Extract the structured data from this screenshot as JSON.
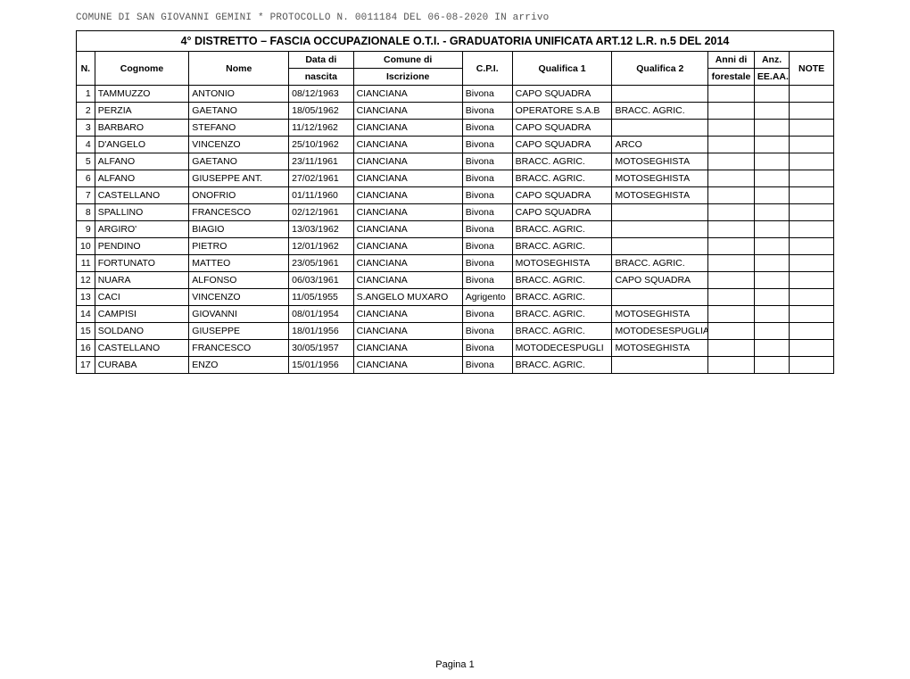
{
  "header_text": "COMUNE DI SAN GIOVANNI GEMINI  * PROTOCOLLO N. 0011184 DEL 06-08-2020 IN arrivo",
  "title": "4° DISTRETTO – FASCIA OCCUPAZIONALE O.T.I. - GRADUATORIA UNIFICATA ART.12 L.R. n.5 DEL 2014",
  "columns": {
    "n": "N.",
    "cognome": "Cognome",
    "nome": "Nome",
    "data_top": "Data di",
    "data_bot": "nascita",
    "comune_top": "Comune di",
    "comune_bot": "Iscrizione",
    "cpi": "C.P.I.",
    "q1": "Qualifica 1",
    "q2": "Qualifica 2",
    "anni_top": "Anni di",
    "anni_bot": "forestale",
    "anz_top": "Anz.",
    "anz_bot": "EE.AA.",
    "note": "NOTE"
  },
  "col_widths": {
    "n": 20,
    "cognome": 102,
    "nome": 108,
    "data": 70,
    "comune": 118,
    "cpi": 54,
    "q1": 108,
    "q2": 104,
    "anni": 50,
    "anz": 38,
    "note": 48
  },
  "rows": [
    {
      "n": "1",
      "cognome": "TAMMUZZO",
      "nome": "ANTONIO",
      "data": "08/12/1963",
      "comune": "CIANCIANA",
      "cpi": "Bivona",
      "q1": "CAPO SQUADRA",
      "q2": ""
    },
    {
      "n": "2",
      "cognome": "PERZIA",
      "nome": "GAETANO",
      "data": "18/05/1962",
      "comune": "CIANCIANA",
      "cpi": "Bivona",
      "q1": "OPERATORE S.A.B",
      "q2": "BRACC. AGRIC."
    },
    {
      "n": "3",
      "cognome": "BARBARO",
      "nome": "STEFANO",
      "data": "11/12/1962",
      "comune": "CIANCIANA",
      "cpi": "Bivona",
      "q1": "CAPO SQUADRA",
      "q2": ""
    },
    {
      "n": "4",
      "cognome": "D'ANGELO",
      "nome": "VINCENZO",
      "data": "25/10/1962",
      "comune": "CIANCIANA",
      "cpi": "Bivona",
      "q1": "CAPO SQUADRA",
      "q2": "ARCO"
    },
    {
      "n": "5",
      "cognome": "ALFANO",
      "nome": "GAETANO",
      "data": "23/11/1961",
      "comune": "CIANCIANA",
      "cpi": "Bivona",
      "q1": "BRACC. AGRIC.",
      "q2": "MOTOSEGHISTA"
    },
    {
      "n": "6",
      "cognome": "ALFANO",
      "nome": "GIUSEPPE ANT.",
      "data": "27/02/1961",
      "comune": "CIANCIANA",
      "cpi": "Bivona",
      "q1": "BRACC. AGRIC.",
      "q2": "MOTOSEGHISTA"
    },
    {
      "n": "7",
      "cognome": "CASTELLANO",
      "nome": "ONOFRIO",
      "data": "01/11/1960",
      "comune": "CIANCIANA",
      "cpi": "Bivona",
      "q1": "CAPO SQUADRA",
      "q2": "MOTOSEGHISTA"
    },
    {
      "n": "8",
      "cognome": "SPALLINO",
      "nome": "FRANCESCO",
      "data": "02/12/1961",
      "comune": "CIANCIANA",
      "cpi": "Bivona",
      "q1": "CAPO SQUADRA",
      "q2": ""
    },
    {
      "n": "9",
      "cognome": "ARGIRO'",
      "nome": "BIAGIO",
      "data": "13/03/1962",
      "comune": "CIANCIANA",
      "cpi": "Bivona",
      "q1": "BRACC. AGRIC.",
      "q2": ""
    },
    {
      "n": "10",
      "cognome": "PENDINO",
      "nome": "PIETRO",
      "data": "12/01/1962",
      "comune": "CIANCIANA",
      "cpi": "Bivona",
      "q1": "BRACC. AGRIC.",
      "q2": ""
    },
    {
      "n": "11",
      "cognome": "FORTUNATO",
      "nome": "MATTEO",
      "data": "23/05/1961",
      "comune": "CIANCIANA",
      "cpi": "Bivona",
      "q1": "MOTOSEGHISTA",
      "q2": "BRACC. AGRIC."
    },
    {
      "n": "12",
      "cognome": "NUARA",
      "nome": "ALFONSO",
      "data": "06/03/1961",
      "comune": "CIANCIANA",
      "cpi": "Bivona",
      "q1": "BRACC. AGRIC.",
      "q2": "CAPO SQUADRA"
    },
    {
      "n": "13",
      "cognome": "CACI",
      "nome": "VINCENZO",
      "data": "11/05/1955",
      "comune": "S.ANGELO MUXARO",
      "cpi": "Agrigento",
      "q1": "BRACC. AGRIC.",
      "q2": ""
    },
    {
      "n": "14",
      "cognome": "CAMPISI",
      "nome": "GIOVANNI",
      "data": "08/01/1954",
      "comune": "CIANCIANA",
      "cpi": "Bivona",
      "q1": "BRACC. AGRIC.",
      "q2": "MOTOSEGHISTA"
    },
    {
      "n": "15",
      "cognome": "SOLDANO",
      "nome": "GIUSEPPE",
      "data": "18/01/1956",
      "comune": "CIANCIANA",
      "cpi": "Bivona",
      "q1": "BRACC. AGRIC.",
      "q2": "MOTODESESPUGLIATORE"
    },
    {
      "n": "16",
      "cognome": "CASTELLANO",
      "nome": "FRANCESCO",
      "data": "30/05/1957",
      "comune": "CIANCIANA",
      "cpi": "Bivona",
      "q1": "MOTODECESPUGLI",
      "q2": "MOTOSEGHISTA"
    },
    {
      "n": "17",
      "cognome": "CURABA",
      "nome": "ENZO",
      "data": "15/01/1956",
      "comune": "CIANCIANA",
      "cpi": "Bivona",
      "q1": "BRACC. AGRIC.",
      "q2": ""
    }
  ],
  "footer": "Pagina 1"
}
